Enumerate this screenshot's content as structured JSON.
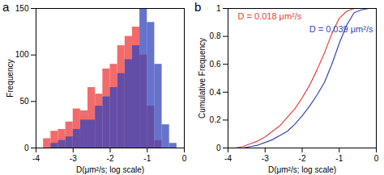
{
  "chart_data": [
    {
      "type": "histogram",
      "title": "a",
      "x_label": "D(μm²/s; log scale)",
      "y_label": "Frequency",
      "bins": [
        -4.0,
        -3.8,
        -3.6,
        -3.4,
        -3.2,
        -3.0,
        -2.8,
        -2.6,
        -2.4,
        -2.2,
        -2.0,
        -1.8,
        -1.6,
        -1.4,
        -1.2,
        -1.0,
        -0.8,
        -0.6,
        -0.4,
        -0.2,
        0.0
      ],
      "series": [
        {
          "color": "#f26b6b",
          "values": [
            0,
            10,
            18,
            20,
            28,
            42,
            40,
            65,
            58,
            85,
            90,
            110,
            120,
            130,
            100,
            45,
            8,
            0,
            0,
            0
          ]
        },
        {
          "color": "#3344bb",
          "values": [
            0,
            0,
            5,
            8,
            12,
            20,
            30,
            30,
            45,
            55,
            65,
            80,
            95,
            110,
            150,
            135,
            90,
            25,
            5,
            0
          ]
        }
      ],
      "xlim": [
        -4,
        0
      ],
      "xticks": [
        -4,
        -3,
        -2,
        -1,
        0
      ],
      "ylim": [
        0,
        150
      ],
      "yticks": [
        0,
        50,
        100,
        150
      ]
    },
    {
      "type": "line",
      "title": "b",
      "x_label": "D(μm²/s; log scale)",
      "y_label": "Cumulative Frequency",
      "x": [
        -4.0,
        -3.8,
        -3.6,
        -3.4,
        -3.2,
        -3.0,
        -2.8,
        -2.6,
        -2.4,
        -2.2,
        -2.0,
        -1.8,
        -1.6,
        -1.4,
        -1.2,
        -1.0,
        -0.8,
        -0.6,
        -0.4,
        -0.2,
        0.0
      ],
      "series": [
        {
          "color": "#e8403a",
          "values": [
            0,
            0,
            0.01,
            0.03,
            0.05,
            0.08,
            0.12,
            0.16,
            0.22,
            0.28,
            0.36,
            0.45,
            0.56,
            0.68,
            0.82,
            0.93,
            0.98,
            1,
            1,
            1,
            1
          ]
        },
        {
          "color": "#3344bb",
          "values": [
            0,
            0,
            0,
            0.01,
            0.02,
            0.04,
            0.06,
            0.09,
            0.12,
            0.17,
            0.23,
            0.3,
            0.38,
            0.47,
            0.6,
            0.75,
            0.88,
            0.97,
            0.99,
            1,
            1
          ]
        }
      ],
      "annotations": [
        {
          "text": "D = 0.018 μm²/s",
          "color": "#e8403a"
        },
        {
          "text": "D = 0.039 μm²/s",
          "color": "#3344bb"
        }
      ],
      "xlim": [
        -4,
        0
      ],
      "xticks": [
        -4,
        -3,
        -2,
        -1,
        0
      ],
      "ylim": [
        0,
        1
      ],
      "yticks": [
        0,
        0.2,
        0.4,
        0.6,
        0.8,
        1
      ]
    }
  ]
}
